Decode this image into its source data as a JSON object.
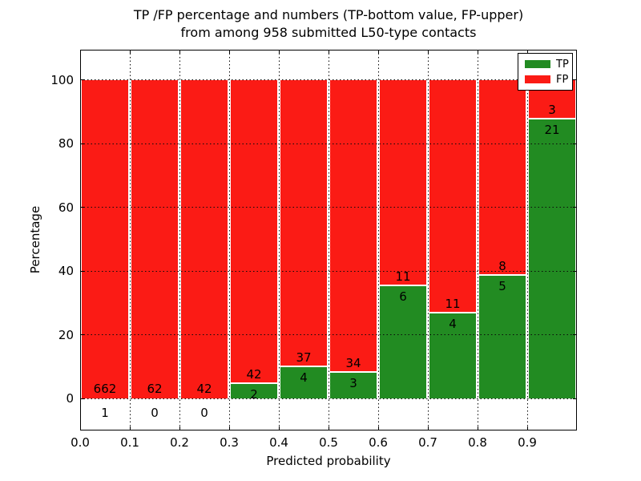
{
  "chart_data": {
    "type": "bar",
    "stacked": true,
    "title_line1": "TP /FP percentage and numbers (TP-bottom value, FP-upper)",
    "title_line2": "from among 958 submitted L50-type contacts",
    "xlabel": "Predicted probability",
    "ylabel": "Percentage",
    "total_contacts": 958,
    "xlim": [
      0.0,
      1.0
    ],
    "ylim": [
      -10,
      109.5
    ],
    "grid": "dotted",
    "legend_position": "upper right",
    "legend": [
      {
        "label": "TP",
        "color": "#228b22"
      },
      {
        "label": "FP",
        "color": "#fb1b15"
      }
    ],
    "xticks": [
      "0.0",
      "0.1",
      "0.2",
      "0.3",
      "0.4",
      "0.5",
      "0.6",
      "0.7",
      "0.8",
      "0.9"
    ],
    "yticks": [
      0,
      20,
      40,
      60,
      80,
      100
    ],
    "categories": [
      "0.0-0.1",
      "0.1-0.2",
      "0.2-0.3",
      "0.3-0.4",
      "0.4-0.5",
      "0.5-0.6",
      "0.6-0.7",
      "0.7-0.8",
      "0.8-0.9",
      "0.9-1.0"
    ],
    "series": [
      {
        "name": "TP",
        "counts": [
          1,
          0,
          0,
          2,
          4,
          3,
          6,
          4,
          5,
          21
        ],
        "pct": [
          0.15,
          0,
          0,
          4.55,
          9.76,
          8.11,
          35.29,
          26.67,
          38.46,
          87.5
        ]
      },
      {
        "name": "FP",
        "counts": [
          662,
          62,
          42,
          42,
          37,
          34,
          11,
          11,
          8,
          3
        ],
        "pct": [
          99.85,
          100,
          100,
          95.45,
          90.24,
          91.89,
          64.71,
          73.33,
          61.54,
          12.5
        ]
      }
    ]
  }
}
